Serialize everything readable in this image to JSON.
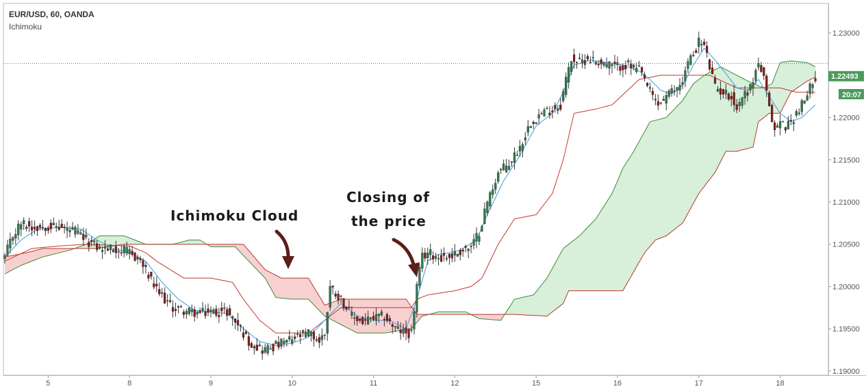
{
  "legend": {
    "symbol": "EUR/USD, 60, OANDA",
    "indicator": "Ichimoku"
  },
  "annotations": {
    "cloud": "Ichimoku Cloud",
    "closing_line1": "Closing of",
    "closing_line2": "the price"
  },
  "price_badge": {
    "value": "1.22493",
    "time": "20:07"
  },
  "colors": {
    "bull": "#2f7a4f",
    "bear": "#8b1a1a",
    "conversion": "#4aa3df",
    "base": "#c0392b",
    "cloud_bull_fill": "#d8efd9",
    "cloud_bear_fill": "#f9d0d0",
    "span_a": "#3c8a3c",
    "span_b": "#b33a2e",
    "badge": "#4c9a5c",
    "annotation_arrow": "#5a1f1a"
  },
  "chart_data": {
    "type": "candlestick",
    "ylim": [
      1.1895,
      1.2335
    ],
    "y_ticks": [
      "1.23000",
      "1.22500",
      "1.22000",
      "1.21500",
      "1.21000",
      "1.20500",
      "1.20000",
      "1.19500",
      "1.19000"
    ],
    "y_tick_values": [
      1.23,
      1.225,
      1.22,
      1.215,
      1.21,
      1.205,
      1.2,
      1.195,
      1.19
    ],
    "x_ticks": [
      "5",
      "8",
      "9",
      "10",
      "11",
      "12",
      "15",
      "16",
      "17",
      "18"
    ],
    "x_tick_index": [
      16,
      46,
      76,
      106,
      136,
      166,
      196,
      226,
      256,
      286
    ],
    "current_price": 1.22493,
    "reference_price": 1.2264,
    "price_anchors": [
      [
        0,
        1.2035
      ],
      [
        3,
        1.206
      ],
      [
        6,
        1.2075
      ],
      [
        10,
        1.207
      ],
      [
        16,
        1.2072
      ],
      [
        20,
        1.207
      ],
      [
        26,
        1.2065
      ],
      [
        30,
        1.2055
      ],
      [
        35,
        1.2045
      ],
      [
        40,
        1.2045
      ],
      [
        46,
        1.204
      ],
      [
        50,
        1.203
      ],
      [
        56,
        1.1995
      ],
      [
        62,
        1.1975
      ],
      [
        68,
        1.197
      ],
      [
        72,
        1.1968
      ],
      [
        76,
        1.197
      ],
      [
        82,
        1.197
      ],
      [
        86,
        1.1955
      ],
      [
        90,
        1.1935
      ],
      [
        95,
        1.1925
      ],
      [
        100,
        1.193
      ],
      [
        104,
        1.1935
      ],
      [
        108,
        1.194
      ],
      [
        112,
        1.1945
      ],
      [
        116,
        1.1935
      ],
      [
        118,
        1.1945
      ],
      [
        120,
        1.2
      ],
      [
        124,
        1.1985
      ],
      [
        128,
        1.1965
      ],
      [
        132,
        1.1958
      ],
      [
        136,
        1.1962
      ],
      [
        140,
        1.1965
      ],
      [
        144,
        1.195
      ],
      [
        148,
        1.1945
      ],
      [
        150,
        1.1945
      ],
      [
        152,
        1.2
      ],
      [
        154,
        1.2035
      ],
      [
        156,
        1.204
      ],
      [
        160,
        1.2035
      ],
      [
        164,
        1.2035
      ],
      [
        170,
        1.2045
      ],
      [
        172,
        1.2045
      ],
      [
        175,
        1.2065
      ],
      [
        178,
        1.21
      ],
      [
        182,
        1.2135
      ],
      [
        186,
        1.2145
      ],
      [
        190,
        1.2165
      ],
      [
        194,
        1.2195
      ],
      [
        198,
        1.2205
      ],
      [
        202,
        1.221
      ],
      [
        205,
        1.2215
      ],
      [
        207,
        1.2245
      ],
      [
        209,
        1.227
      ],
      [
        212,
        1.2265
      ],
      [
        215,
        1.227
      ],
      [
        220,
        1.2265
      ],
      [
        225,
        1.226
      ],
      [
        230,
        1.2262
      ],
      [
        234,
        1.2255
      ],
      [
        236,
        1.2245
      ],
      [
        238,
        1.223
      ],
      [
        241,
        1.2215
      ],
      [
        244,
        1.2225
      ],
      [
        248,
        1.2235
      ],
      [
        250,
        1.2245
      ],
      [
        252,
        1.2265
      ],
      [
        254,
        1.2275
      ],
      [
        256,
        1.229
      ],
      [
        258,
        1.2285
      ],
      [
        260,
        1.226
      ],
      [
        262,
        1.2235
      ],
      [
        265,
        1.223
      ],
      [
        268,
        1.2225
      ],
      [
        270,
        1.221
      ],
      [
        272,
        1.2225
      ],
      [
        275,
        1.2235
      ],
      [
        277,
        1.2255
      ],
      [
        278,
        1.2265
      ],
      [
        280,
        1.2245
      ],
      [
        282,
        1.221
      ],
      [
        284,
        1.2185
      ],
      [
        286,
        1.2195
      ],
      [
        288,
        1.219
      ],
      [
        290,
        1.2195
      ],
      [
        292,
        1.2205
      ],
      [
        294,
        1.2215
      ],
      [
        296,
        1.2225
      ],
      [
        298,
        1.2245
      ],
      [
        299,
        1.2249
      ]
    ],
    "span_a_anchors": [
      [
        0,
        1.2015
      ],
      [
        6,
        1.2025
      ],
      [
        14,
        1.2035
      ],
      [
        24,
        1.2043
      ],
      [
        30,
        1.205
      ],
      [
        35,
        1.206
      ],
      [
        44,
        1.206
      ],
      [
        52,
        1.205
      ],
      [
        62,
        1.205
      ],
      [
        68,
        1.2055
      ],
      [
        72,
        1.2055
      ],
      [
        76,
        1.2047
      ],
      [
        85,
        1.2047
      ],
      [
        90,
        1.203
      ],
      [
        96,
        1.201
      ],
      [
        100,
        1.1987
      ],
      [
        106,
        1.1985
      ],
      [
        112,
        1.1985
      ],
      [
        118,
        1.1965
      ],
      [
        124,
        1.1955
      ],
      [
        130,
        1.1945
      ],
      [
        140,
        1.1945
      ],
      [
        150,
        1.195
      ],
      [
        154,
        1.1965
      ],
      [
        160,
        1.197
      ],
      [
        170,
        1.197
      ],
      [
        175,
        1.1962
      ],
      [
        183,
        1.196
      ],
      [
        188,
        1.1985
      ],
      [
        195,
        1.199
      ],
      [
        200,
        1.201
      ],
      [
        206,
        1.2045
      ],
      [
        212,
        1.206
      ],
      [
        218,
        1.208
      ],
      [
        224,
        1.211
      ],
      [
        228,
        1.214
      ],
      [
        232,
        1.216
      ],
      [
        238,
        1.2195
      ],
      [
        244,
        1.22
      ],
      [
        250,
        1.222
      ],
      [
        254,
        1.224
      ],
      [
        258,
        1.225
      ],
      [
        264,
        1.226
      ],
      [
        270,
        1.225
      ],
      [
        276,
        1.224
      ],
      [
        280,
        1.2235
      ],
      [
        283,
        1.224
      ],
      [
        286,
        1.2265
      ],
      [
        290,
        1.2267
      ],
      [
        296,
        1.2265
      ],
      [
        299,
        1.226
      ]
    ],
    "span_b_anchors": [
      [
        0,
        1.2035
      ],
      [
        8,
        1.204
      ],
      [
        14,
        1.2045
      ],
      [
        34,
        1.2045
      ],
      [
        44,
        1.205
      ],
      [
        80,
        1.205
      ],
      [
        88,
        1.205
      ],
      [
        96,
        1.202
      ],
      [
        102,
        1.201
      ],
      [
        106,
        1.201
      ],
      [
        112,
        1.201
      ],
      [
        118,
        1.1978
      ],
      [
        124,
        1.1985
      ],
      [
        130,
        1.1985
      ],
      [
        136,
        1.1985
      ],
      [
        148,
        1.1985
      ],
      [
        152,
        1.1967
      ],
      [
        156,
        1.1967
      ],
      [
        180,
        1.1967
      ],
      [
        184,
        1.1967
      ],
      [
        188,
        1.1967
      ],
      [
        200,
        1.1965
      ],
      [
        206,
        1.198
      ],
      [
        208,
        1.1995
      ],
      [
        216,
        1.1995
      ],
      [
        220,
        1.1995
      ],
      [
        228,
        1.1995
      ],
      [
        236,
        1.204
      ],
      [
        240,
        1.2055
      ],
      [
        244,
        1.206
      ],
      [
        250,
        1.2075
      ],
      [
        256,
        1.211
      ],
      [
        262,
        1.2135
      ],
      [
        266,
        1.216
      ],
      [
        270,
        1.216
      ],
      [
        276,
        1.2165
      ],
      [
        278,
        1.2195
      ],
      [
        282,
        1.2205
      ],
      [
        286,
        1.2205
      ],
      [
        290,
        1.223
      ],
      [
        296,
        1.2243
      ],
      [
        299,
        1.2248
      ]
    ],
    "conversion_anchors": [
      [
        0,
        1.2035
      ],
      [
        6,
        1.2055
      ],
      [
        12,
        1.2068
      ],
      [
        20,
        1.207
      ],
      [
        28,
        1.2068
      ],
      [
        34,
        1.2055
      ],
      [
        40,
        1.2045
      ],
      [
        46,
        1.204
      ],
      [
        52,
        1.203
      ],
      [
        58,
        1.2005
      ],
      [
        64,
        1.1985
      ],
      [
        70,
        1.1972
      ],
      [
        76,
        1.197
      ],
      [
        82,
        1.1968
      ],
      [
        88,
        1.195
      ],
      [
        94,
        1.1935
      ],
      [
        100,
        1.193
      ],
      [
        106,
        1.1933
      ],
      [
        112,
        1.194
      ],
      [
        118,
        1.196
      ],
      [
        124,
        1.198
      ],
      [
        130,
        1.1965
      ],
      [
        136,
        1.196
      ],
      [
        142,
        1.196
      ],
      [
        148,
        1.195
      ],
      [
        152,
        1.1985
      ],
      [
        156,
        1.203
      ],
      [
        160,
        1.2038
      ],
      [
        164,
        1.204
      ],
      [
        168,
        1.2043
      ],
      [
        174,
        1.2055
      ],
      [
        178,
        1.2085
      ],
      [
        184,
        1.2125
      ],
      [
        190,
        1.2155
      ],
      [
        196,
        1.219
      ],
      [
        202,
        1.2205
      ],
      [
        206,
        1.223
      ],
      [
        210,
        1.2262
      ],
      [
        216,
        1.2268
      ],
      [
        222,
        1.2265
      ],
      [
        228,
        1.2262
      ],
      [
        234,
        1.2255
      ],
      [
        238,
        1.2245
      ],
      [
        242,
        1.2232
      ],
      [
        246,
        1.2228
      ],
      [
        250,
        1.2238
      ],
      [
        254,
        1.2262
      ],
      [
        258,
        1.2282
      ],
      [
        262,
        1.2268
      ],
      [
        266,
        1.2252
      ],
      [
        270,
        1.2235
      ],
      [
        274,
        1.2232
      ],
      [
        278,
        1.2245
      ],
      [
        282,
        1.2225
      ],
      [
        286,
        1.2205
      ],
      [
        290,
        1.2195
      ],
      [
        294,
        1.22
      ],
      [
        299,
        1.2215
      ]
    ],
    "base_anchors": [
      [
        0,
        1.203
      ],
      [
        10,
        1.2045
      ],
      [
        20,
        1.2048
      ],
      [
        30,
        1.205
      ],
      [
        46,
        1.2048
      ],
      [
        52,
        1.204
      ],
      [
        56,
        1.203
      ],
      [
        66,
        1.201
      ],
      [
        76,
        1.201
      ],
      [
        84,
        1.2005
      ],
      [
        88,
        1.1985
      ],
      [
        94,
        1.196
      ],
      [
        100,
        1.1945
      ],
      [
        112,
        1.1945
      ],
      [
        118,
        1.196
      ],
      [
        124,
        1.1975
      ],
      [
        136,
        1.1975
      ],
      [
        144,
        1.1975
      ],
      [
        150,
        1.1975
      ],
      [
        152,
        1.1985
      ],
      [
        156,
        1.199
      ],
      [
        166,
        1.1995
      ],
      [
        172,
        1.2
      ],
      [
        176,
        1.201
      ],
      [
        182,
        1.205
      ],
      [
        188,
        1.208
      ],
      [
        196,
        1.2085
      ],
      [
        202,
        1.211
      ],
      [
        206,
        1.215
      ],
      [
        210,
        1.2205
      ],
      [
        218,
        1.221
      ],
      [
        224,
        1.2215
      ],
      [
        234,
        1.2245
      ],
      [
        242,
        1.225
      ],
      [
        248,
        1.225
      ],
      [
        254,
        1.225
      ],
      [
        260,
        1.225
      ],
      [
        270,
        1.2235
      ],
      [
        280,
        1.2235
      ],
      [
        286,
        1.2235
      ],
      [
        292,
        1.223
      ],
      [
        299,
        1.223
      ]
    ]
  }
}
